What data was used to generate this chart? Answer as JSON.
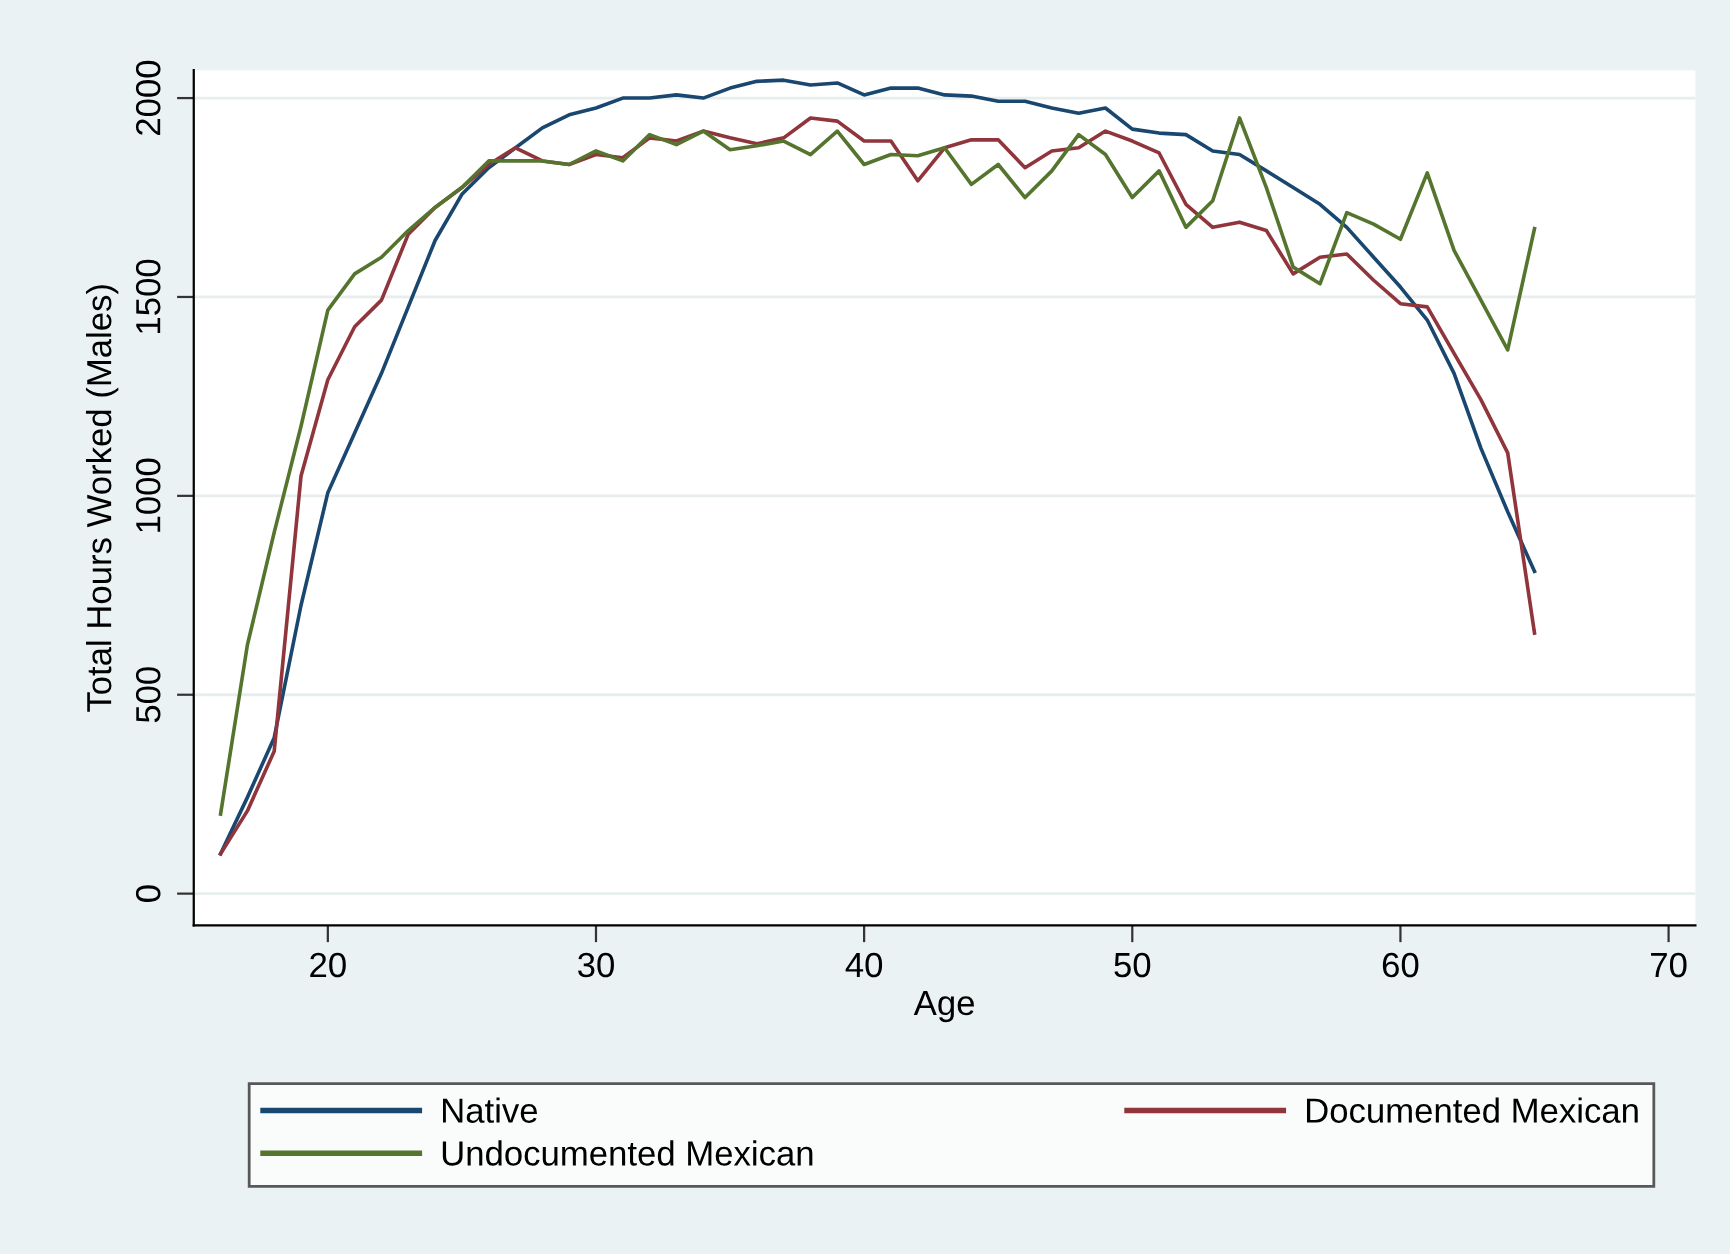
{
  "chart_data": {
    "type": "line",
    "xlabel": "Age",
    "ylabel": "Total Hours Worked (Males)",
    "x": [
      16,
      17,
      18,
      19,
      20,
      21,
      22,
      23,
      24,
      25,
      26,
      27,
      28,
      29,
      30,
      31,
      32,
      33,
      34,
      35,
      36,
      37,
      38,
      39,
      40,
      41,
      42,
      43,
      44,
      45,
      46,
      47,
      48,
      49,
      50,
      51,
      52,
      53,
      54,
      55,
      56,
      57,
      58,
      59,
      60,
      61,
      62,
      63,
      64,
      65
    ],
    "series": [
      {
        "name": "Native",
        "color": "#1a476f",
        "values": [
          100,
          242,
          392,
          725,
          1008,
          1158,
          1308,
          1475,
          1642,
          1758,
          1825,
          1875,
          1925,
          1958,
          1975,
          2000,
          2000,
          2008,
          2000,
          2025,
          2042,
          2045,
          2033,
          2038,
          2008,
          2025,
          2025,
          2008,
          2005,
          1992,
          1992,
          1975,
          1962,
          1975,
          1922,
          1912,
          1908,
          1867,
          1858,
          1817,
          1775,
          1733,
          1675,
          1600,
          1525,
          1442,
          1308,
          1120,
          960,
          810
        ]
      },
      {
        "name": "Documented Mexican",
        "color": "#90353b",
        "values": [
          100,
          208,
          358,
          1050,
          1292,
          1425,
          1492,
          1658,
          1725,
          1775,
          1833,
          1875,
          1842,
          1833,
          1858,
          1850,
          1900,
          1892,
          1917,
          1900,
          1885,
          1900,
          1950,
          1942,
          1892,
          1892,
          1792,
          1875,
          1895,
          1895,
          1825,
          1867,
          1875,
          1917,
          1892,
          1862,
          1733,
          1675,
          1688,
          1667,
          1558,
          1600,
          1608,
          1542,
          1483,
          1475,
          1358,
          1242,
          1108,
          655
        ]
      },
      {
        "name": "Undocumented Mexican",
        "color": "#55752f",
        "values": [
          200,
          625,
          908,
          1175,
          1467,
          1558,
          1600,
          1667,
          1725,
          1775,
          1842,
          1842,
          1842,
          1833,
          1867,
          1842,
          1908,
          1883,
          1917,
          1870,
          1880,
          1892,
          1858,
          1917,
          1833,
          1858,
          1855,
          1875,
          1783,
          1833,
          1750,
          1817,
          1908,
          1858,
          1750,
          1817,
          1675,
          1742,
          1950,
          1775,
          1575,
          1533,
          1712,
          1683,
          1645,
          1812,
          1617,
          1492,
          1367,
          1672
        ]
      }
    ],
    "xlim": [
      15,
      71
    ],
    "xticks": [
      20,
      30,
      40,
      50,
      60,
      70
    ],
    "ylim": [
      -80,
      2070
    ],
    "yticks": [
      0,
      500,
      1000,
      1500,
      2000
    ],
    "grid": "y",
    "legend": "bottom",
    "marker": "none",
    "line_style": "solid"
  }
}
